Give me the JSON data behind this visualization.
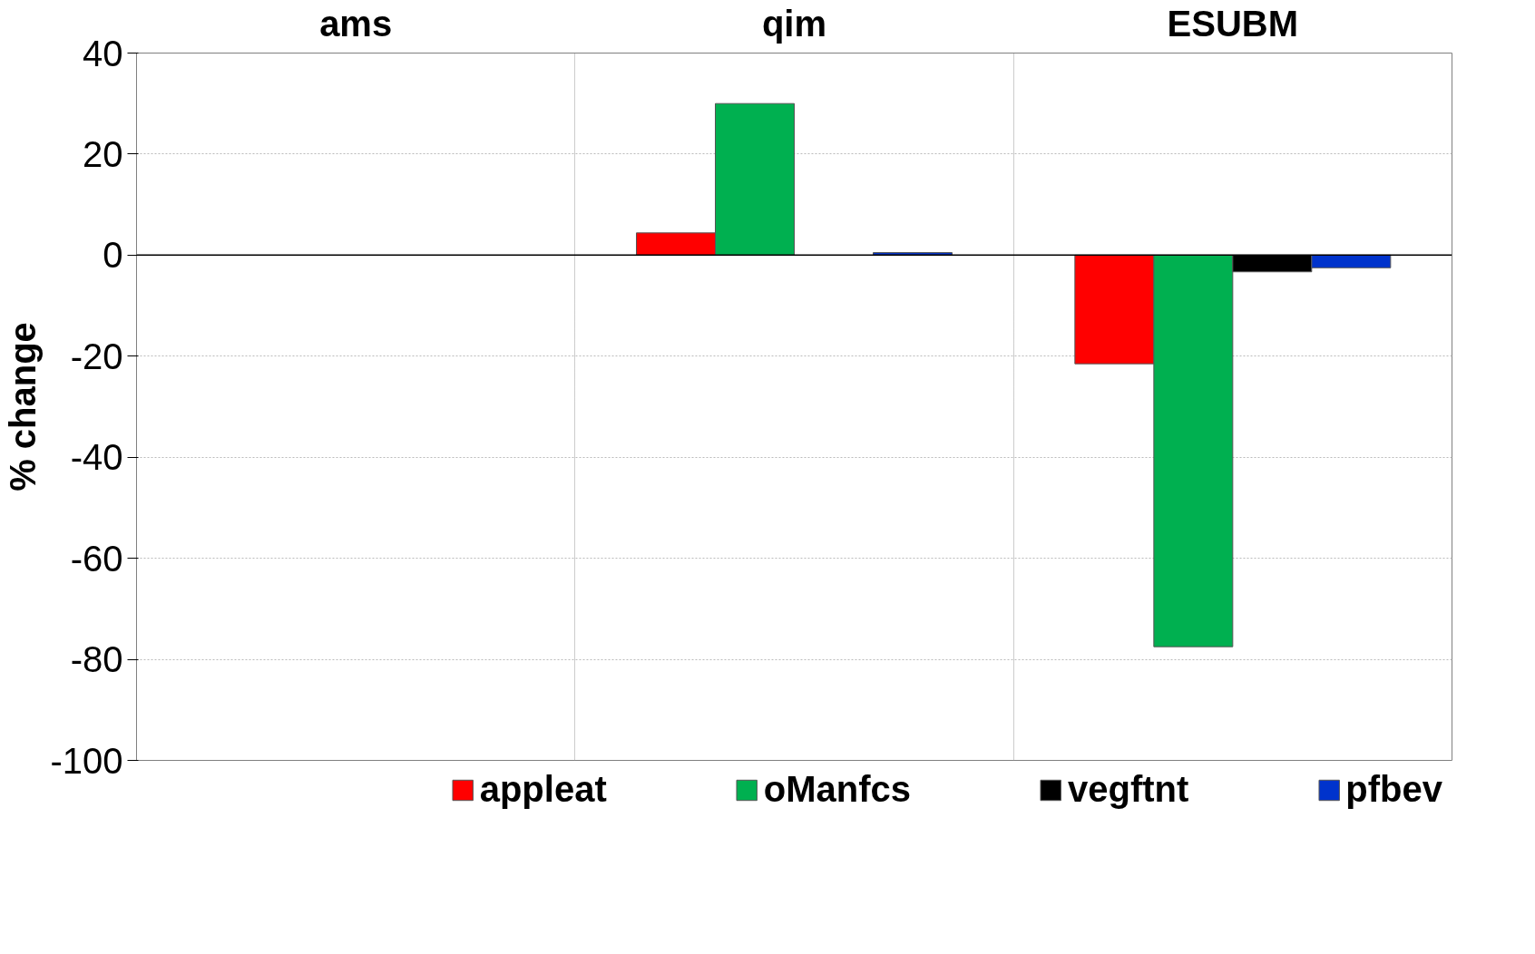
{
  "chart_data": {
    "type": "bar",
    "categories": [
      "ams",
      "qim",
      "ESUBM"
    ],
    "ylabel": "% change",
    "series": [
      {
        "name": "appleat",
        "color": "#ff0000",
        "values": [
          null,
          4.4,
          -21.5
        ]
      },
      {
        "name": "oManfcs",
        "color": "#00b050",
        "values": [
          null,
          30,
          -77.5
        ]
      },
      {
        "name": "vegftnt",
        "color": "#000000",
        "values": [
          null,
          null,
          -3.3
        ]
      },
      {
        "name": "pfbev",
        "color": "#0033cc",
        "values": [
          null,
          0.5,
          -2.5
        ]
      }
    ],
    "ylim": [
      -100,
      40
    ],
    "yticks": [
      -100,
      -80,
      -60,
      -40,
      -20,
      0,
      20,
      40
    ],
    "grid": true,
    "legend": "bottom"
  }
}
